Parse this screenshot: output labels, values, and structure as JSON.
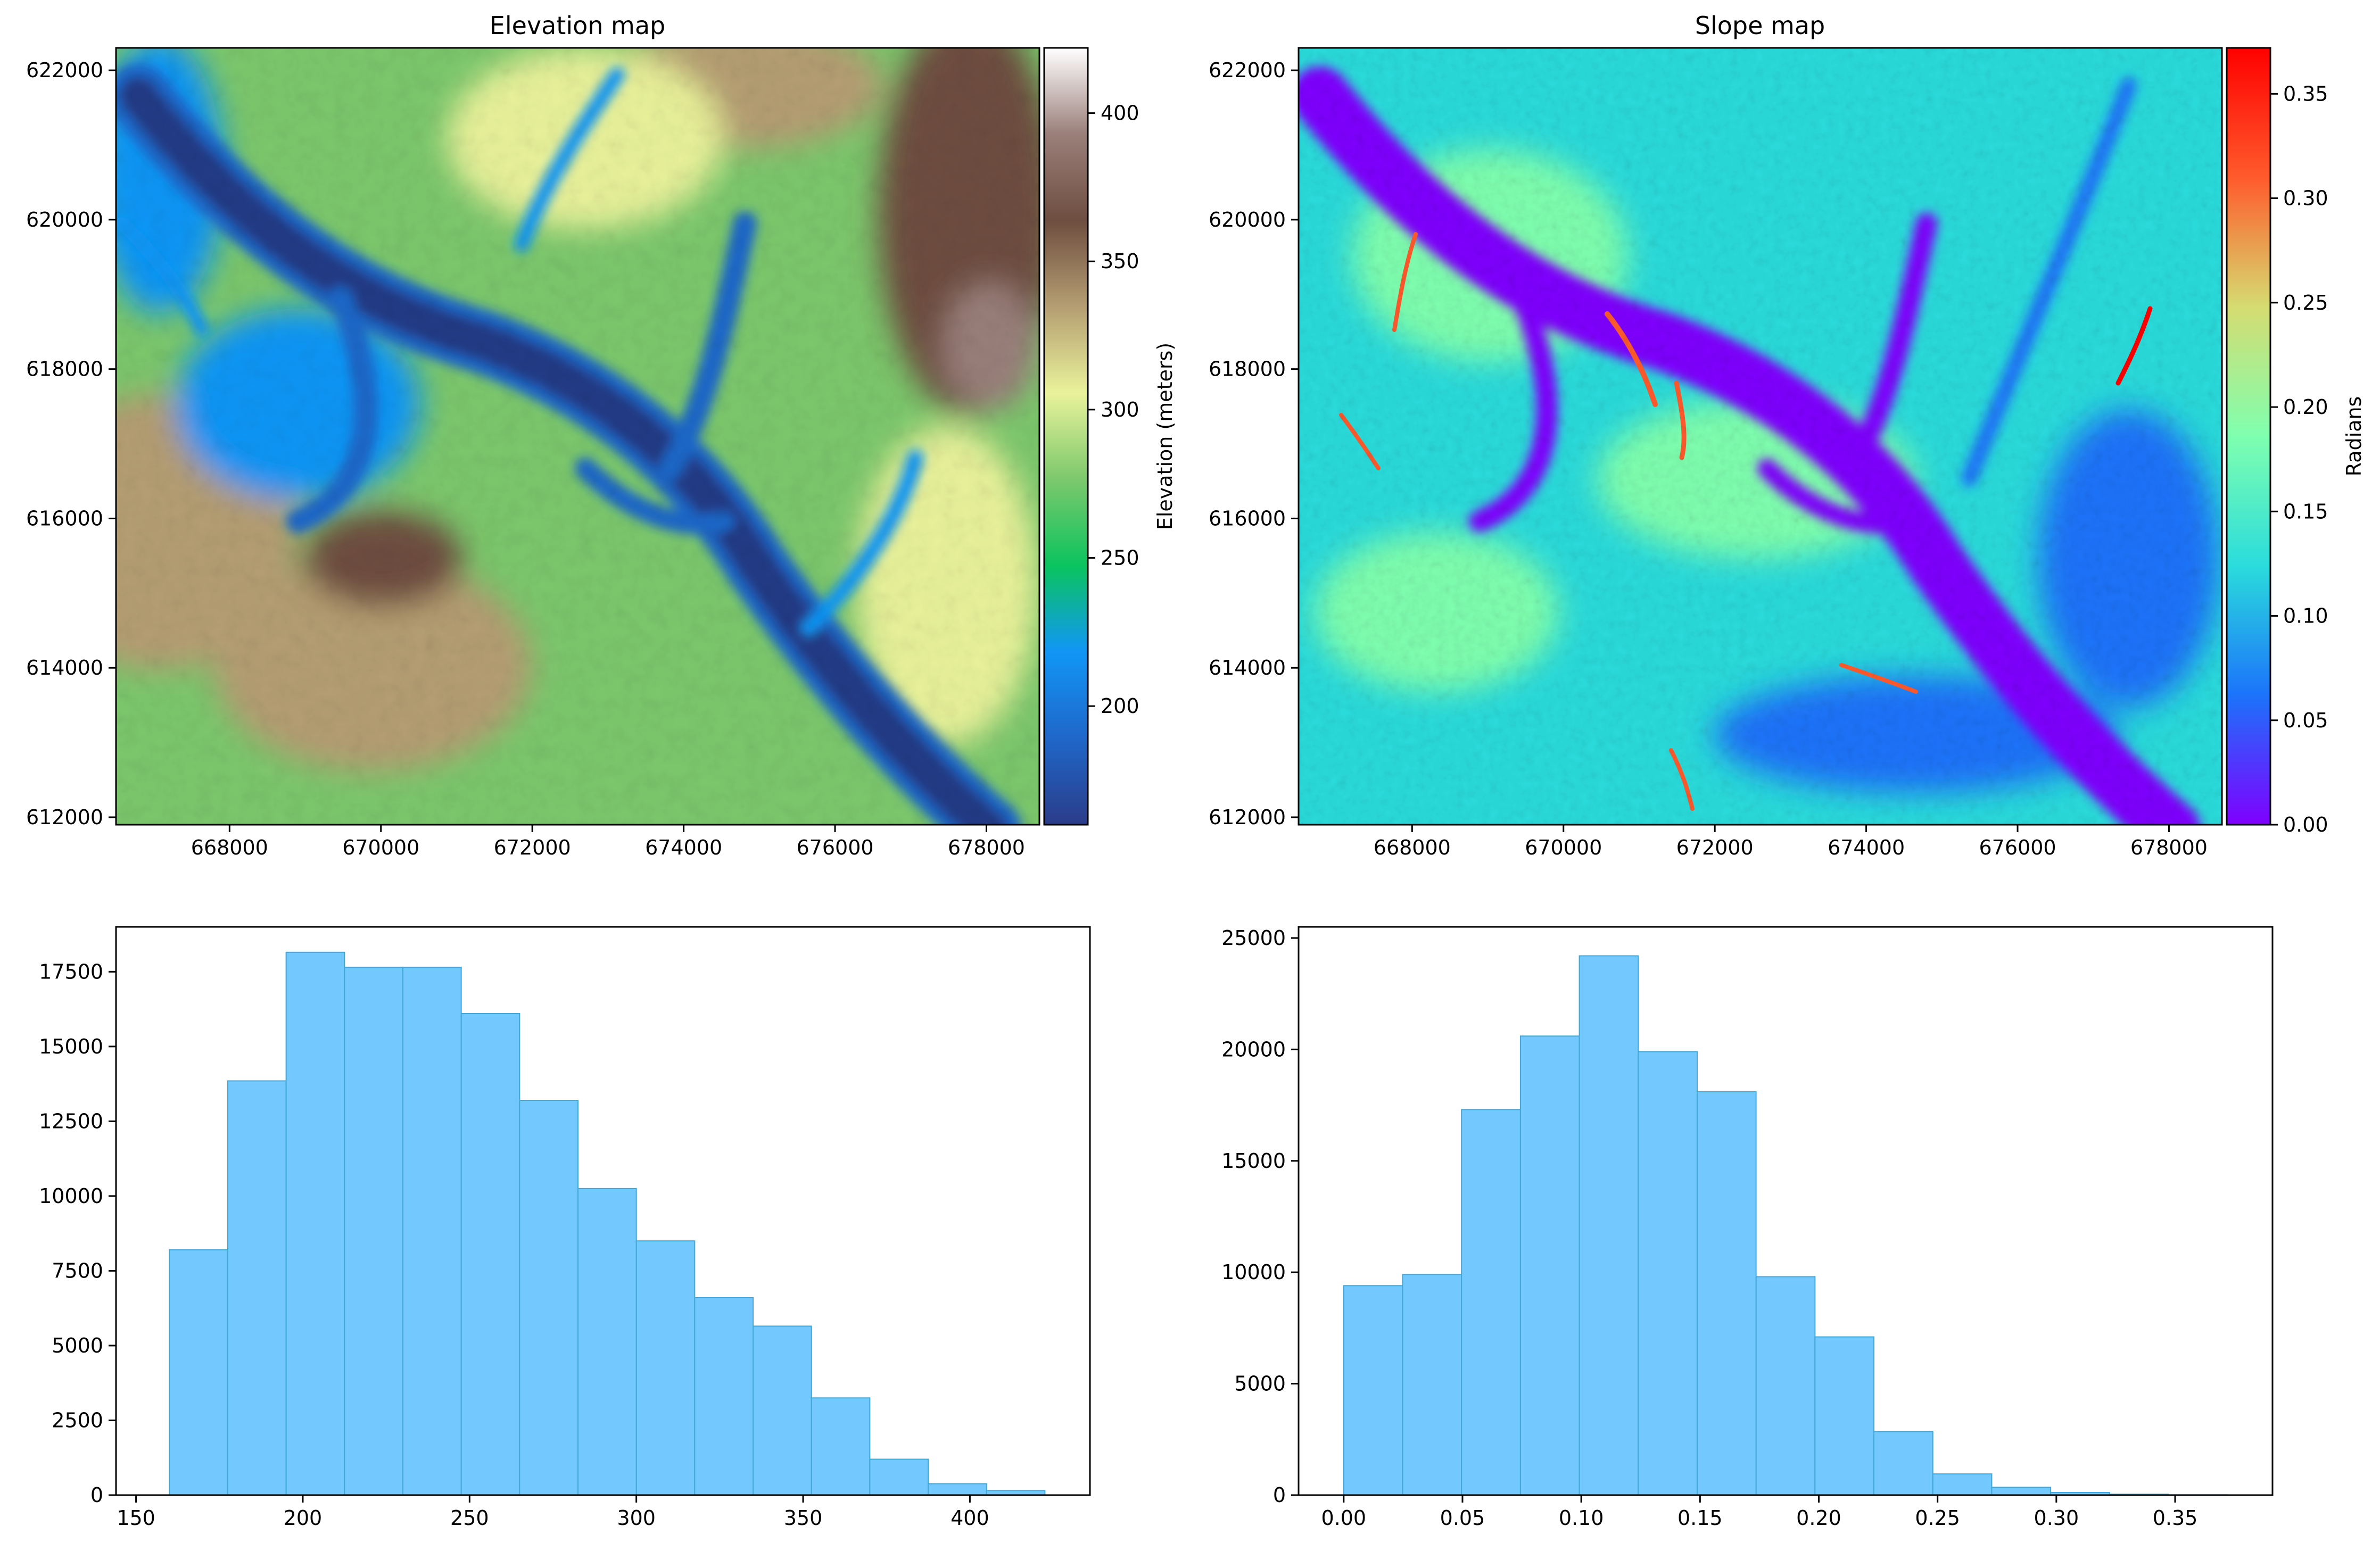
{
  "colors": {
    "hist_fill": "#73c9fd",
    "hist_edge": "#41a6d8",
    "terrain": [
      "#2b3c89",
      "#1f67c9",
      "#1196f6",
      "#0ac45e",
      "#7cc86c",
      "#e9f29a",
      "#b59e72",
      "#6e4e40",
      "#9a7f7a",
      "#ffffff"
    ],
    "rainbow": [
      "#7f00ff",
      "#1c73fa",
      "#2adcdc",
      "#7fffaf",
      "#d5dc71",
      "#ff5a2c",
      "#ff0000"
    ],
    "river": "#203a86"
  },
  "chart_data": [
    {
      "type": "heatmap",
      "title": "Elevation map",
      "colormap": "terrain",
      "xlim": [
        666500,
        678700
      ],
      "ylim": [
        611900,
        622300
      ],
      "xticks": [
        668000,
        670000,
        672000,
        674000,
        676000,
        678000
      ],
      "xtick_labels": [
        "668000",
        "670000",
        "672000",
        "674000",
        "676000",
        "678000"
      ],
      "yticks": [
        612000,
        614000,
        616000,
        618000,
        620000,
        622000
      ],
      "ytick_labels": [
        "612000",
        "614000",
        "616000",
        "618000",
        "620000",
        "622000"
      ],
      "colorbar": {
        "label": "Elevation (meters)",
        "range": [
          160,
          422
        ],
        "ticks": [
          200,
          250,
          300,
          350,
          400
        ],
        "tick_labels": [
          "200",
          "250",
          "300",
          "350",
          "400"
        ]
      }
    },
    {
      "type": "heatmap",
      "title": "Slope map",
      "colormap": "rainbow",
      "xlim": [
        666500,
        678700
      ],
      "ylim": [
        611900,
        622300
      ],
      "xticks": [
        668000,
        670000,
        672000,
        674000,
        676000,
        678000
      ],
      "xtick_labels": [
        "668000",
        "670000",
        "672000",
        "674000",
        "676000",
        "678000"
      ],
      "yticks": [
        612000,
        614000,
        616000,
        618000,
        620000,
        622000
      ],
      "ytick_labels": [
        "612000",
        "614000",
        "616000",
        "618000",
        "620000",
        "622000"
      ],
      "colorbar": {
        "label": "Radians",
        "range": [
          0,
          0.372
        ],
        "ticks": [
          0,
          0.05,
          0.1,
          0.15,
          0.2,
          0.25,
          0.3,
          0.35
        ],
        "tick_labels": [
          "0.00",
          "0.05",
          "0.10",
          "0.15",
          "0.20",
          "0.25",
          "0.30",
          "0.35"
        ]
      }
    },
    {
      "type": "bar",
      "title": "",
      "xlabel": "",
      "ylabel": "",
      "bin_edges": [
        160,
        177.5,
        195,
        212.5,
        230,
        247.5,
        265,
        282.5,
        300,
        317.5,
        335,
        352.5,
        370,
        387.5,
        405,
        422.5
      ],
      "values": [
        8200,
        13850,
        18150,
        17650,
        17650,
        16100,
        13200,
        10250,
        8500,
        6600,
        5650,
        3250,
        1200,
        380,
        150
      ],
      "xlim": [
        144,
        436
      ],
      "ylim": [
        0,
        19000
      ],
      "xticks": [
        150,
        200,
        250,
        300,
        350,
        400
      ],
      "xtick_labels": [
        "150",
        "200",
        "250",
        "300",
        "350",
        "400"
      ],
      "yticks": [
        0,
        2500,
        5000,
        7500,
        10000,
        12500,
        15000,
        17500
      ],
      "ytick_labels": [
        "0",
        "2500",
        "5000",
        "7500",
        "10000",
        "12500",
        "15000",
        "17500"
      ]
    },
    {
      "type": "bar",
      "title": "",
      "xlabel": "",
      "ylabel": "",
      "bin_edges": [
        0,
        0.0248,
        0.0496,
        0.0744,
        0.0992,
        0.124,
        0.1488,
        0.1736,
        0.1984,
        0.2232,
        0.248,
        0.2728,
        0.2976,
        0.3224,
        0.3472,
        0.372
      ],
      "values": [
        9400,
        9900,
        17300,
        20600,
        24200,
        19900,
        18100,
        9800,
        7100,
        2850,
        950,
        350,
        120,
        40,
        15
      ],
      "xlim": [
        -0.019,
        0.391
      ],
      "ylim": [
        0,
        25500
      ],
      "xticks": [
        0,
        0.05,
        0.1,
        0.15,
        0.2,
        0.25,
        0.3,
        0.35
      ],
      "xtick_labels": [
        "0.00",
        "0.05",
        "0.10",
        "0.15",
        "0.20",
        "0.25",
        "0.30",
        "0.35"
      ],
      "yticks": [
        0,
        5000,
        10000,
        15000,
        20000,
        25000
      ],
      "ytick_labels": [
        "0",
        "5000",
        "10000",
        "15000",
        "20000",
        "25000"
      ]
    }
  ]
}
